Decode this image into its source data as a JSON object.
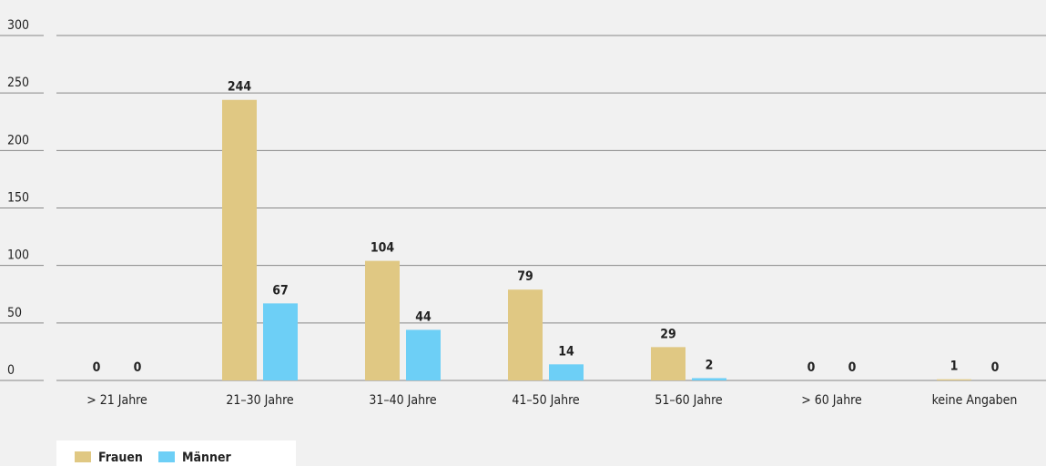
{
  "chart_data": {
    "type": "bar",
    "categories": [
      "> 21 Jahre",
      "21–30 Jahre",
      "31–40 Jahre",
      "41–50 Jahre",
      "51–60 Jahre",
      "> 60 Jahre",
      "keine Angaben"
    ],
    "series": [
      {
        "name": "Frauen",
        "color": "#e0c883",
        "values": [
          0,
          244,
          104,
          79,
          29,
          0,
          1
        ]
      },
      {
        "name": "Männer",
        "color": "#6dcff6",
        "values": [
          0,
          67,
          44,
          14,
          2,
          0,
          0
        ]
      }
    ],
    "ylim": [
      0,
      300
    ],
    "yticks": [
      0,
      50,
      100,
      150,
      200,
      250,
      300
    ],
    "grid": true,
    "legend": "bottom-left"
  }
}
